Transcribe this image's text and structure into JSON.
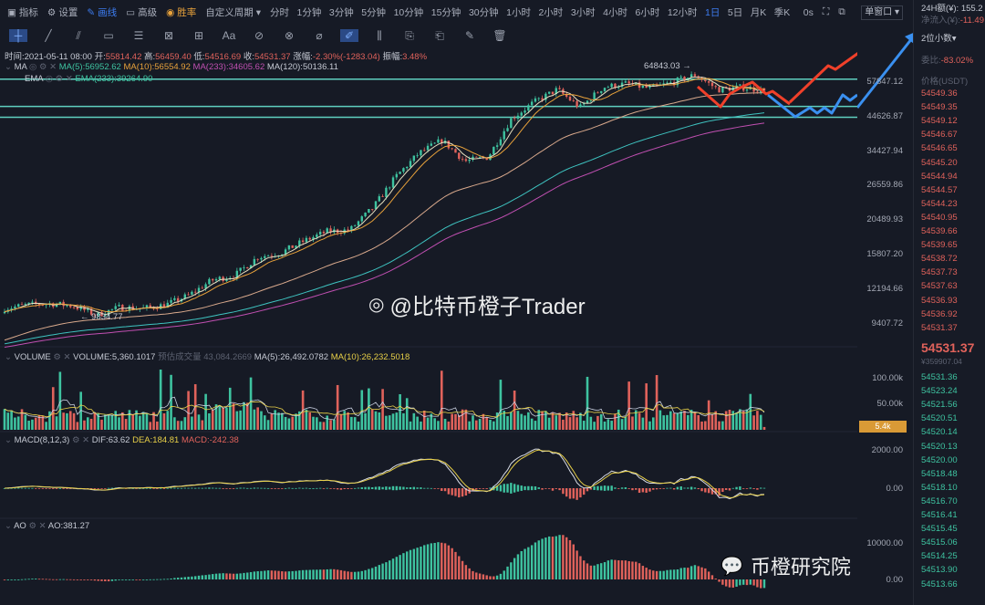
{
  "toolbar": {
    "indicators": "指标",
    "settings": "设置",
    "drawing": "画线",
    "advanced": "高级",
    "win_rate": "胜率",
    "custom_period": "自定义周期",
    "periods": [
      "分时",
      "1分钟",
      "3分钟",
      "5分钟",
      "10分钟",
      "15分钟",
      "30分钟",
      "1小时",
      "2小时",
      "3小时",
      "4小时",
      "6小时",
      "12小时",
      "1日",
      "5日",
      "月K",
      "季K"
    ],
    "active_period": "1日",
    "countdown": "0s",
    "window_mode": "单窗口"
  },
  "info": {
    "time": "时间:2021-05-11 08:00",
    "open_label": "开:",
    "open": "55814.42",
    "high_label": "高:",
    "high": "56459.40",
    "low_label": "低:",
    "low": "54516.69",
    "close_label": "收:",
    "close": "54531.37",
    "change_label": "涨幅:",
    "change": "-2.30%(-1283.04)",
    "amp_label": "振幅:",
    "amp": "3.48%"
  },
  "ma": {
    "label": "MA",
    "ma5": "MA(5):56952.62",
    "ma10": "MA(10):56554.92",
    "ma233": "MA(233):34605.62",
    "ma120": "MA(120):50136.11"
  },
  "ema": {
    "label": "EMA",
    "ema233": "EMA(233):39264.90"
  },
  "volume": {
    "label": "VOLUME",
    "value": "VOLUME:5,360.1017",
    "est": "预估成交量 43,084.2669",
    "ma5": "MA(5):26,492.0782",
    "ma10": "MA(10):26,232.5018",
    "axis": [
      "100.00k",
      "50.00k"
    ],
    "current_tag": "5.4k"
  },
  "macd": {
    "label": "MACD(8,12,3)",
    "dif": "DIF:63.62",
    "dea": "DEA:184.81",
    "macd": "MACD:-242.38",
    "axis": [
      "2000.00",
      "0.00"
    ]
  },
  "ao": {
    "label": "AO",
    "value": "AO:381.27",
    "axis": [
      "10000.00",
      "0.00"
    ]
  },
  "price_axis": [
    "57847.12",
    "44626.87",
    "34427.94",
    "26559.86",
    "20489.93",
    "15807.20",
    "12194.66",
    "9407.72"
  ],
  "annotations": {
    "high": "64843.03 →",
    "low": "← 9834.77"
  },
  "watermarks": {
    "weibo": "@比特币橙子Trader",
    "wechat": "币橙研究院"
  },
  "right_panel": {
    "amount_24h": "24H额(¥): 155.2",
    "net_inflow_label": "净流入(¥):",
    "net_inflow": "-11.49",
    "decimals": "2位小数",
    "ratio_label": "委比:",
    "ratio": "-83.02%",
    "price_header": "价格(USDT)",
    "asks": [
      "54549.36",
      "54549.35",
      "54549.12",
      "54546.67",
      "54546.65",
      "54545.20",
      "54544.94",
      "54544.57",
      "54544.23",
      "54540.95",
      "54539.66",
      "54539.65",
      "54538.72",
      "54537.73",
      "54537.63",
      "54536.93",
      "54536.92",
      "54531.37"
    ],
    "last_price": "54531.37",
    "last_cny": "¥359907.04",
    "bids": [
      "54531.36",
      "54523.24",
      "54521.56",
      "54520.51",
      "54520.14",
      "54520.13",
      "54520.00",
      "54518.48",
      "54518.10",
      "54516.70",
      "54516.41",
      "54515.45",
      "54515.06",
      "54514.25",
      "54513.90",
      "54513.66"
    ]
  },
  "chart_data": {
    "type": "candlestick",
    "scale": "log",
    "price_path": [
      10500,
      10800,
      10900,
      10700,
      10000,
      10600,
      10500,
      10800,
      11600,
      13000,
      13500,
      15500,
      16000,
      17500,
      18800,
      19000,
      22500,
      28500,
      34000,
      37500,
      32000,
      33000,
      44000,
      50000,
      55000,
      48000,
      56000,
      57500,
      55500,
      58000,
      61500,
      55000,
      56000,
      54531
    ],
    "horizontal_levels": [
      59500,
      48400,
      44626.87
    ],
    "colors": {
      "up": "#3ec3a0",
      "down": "#e0625b",
      "ma5": "#e8e0c0",
      "ma10": "#e8a23b",
      "ma120": "#d9a98c",
      "ma233": "#c04fb1",
      "ema233": "#3ec3c0",
      "level": "#5fd0c0",
      "arrow_red": "#f0402a",
      "arrow_blue": "#3a90f0"
    }
  }
}
